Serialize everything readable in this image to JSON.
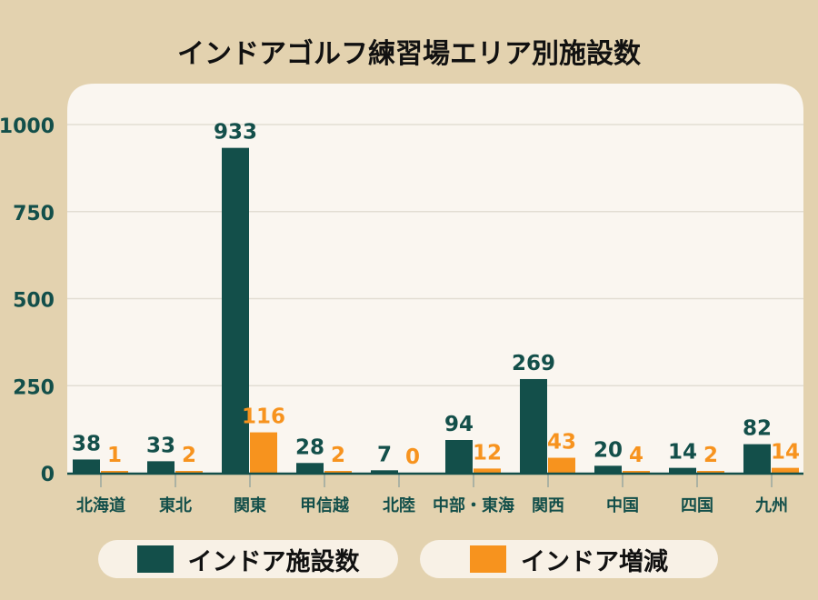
{
  "chart_data": {
    "type": "bar",
    "title": "インドアゴルフ練習場エリア別施設数",
    "categories": [
      "北海道",
      "東北",
      "関東",
      "甲信越",
      "北陸",
      "中部・東海",
      "関西",
      "中国",
      "四国",
      "九州"
    ],
    "series": [
      {
        "name": "インドア施設数",
        "color": "#134F4A",
        "values": [
          38,
          33,
          933,
          28,
          7,
          94,
          269,
          20,
          14,
          82
        ]
      },
      {
        "name": "インドア増減",
        "color": "#F7931E",
        "values": [
          1,
          2,
          116,
          2,
          0,
          12,
          43,
          4,
          2,
          14
        ]
      }
    ],
    "ylim": [
      0,
      1000
    ],
    "yticks": [
      0,
      250,
      500,
      750,
      1000
    ],
    "grid": true,
    "legend": "bottom",
    "xlabel": "",
    "ylabel": ""
  }
}
